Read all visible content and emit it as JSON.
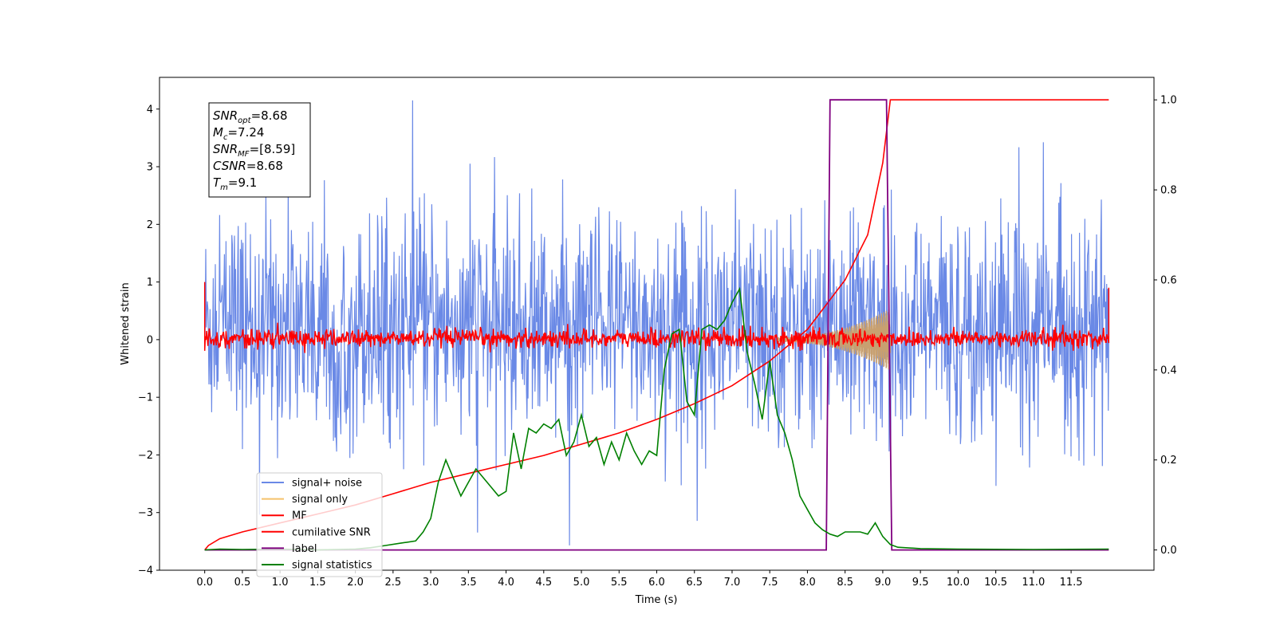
{
  "chart_data": {
    "type": "line",
    "xlabel": "Time (s)",
    "ylabel": "Whitened strain",
    "xlim": [
      -0.6,
      12.6
    ],
    "ylim": [
      -4.0,
      4.55
    ],
    "y2lim": [
      -0.045,
      1.05
    ],
    "x_ticks": [
      0.0,
      0.5,
      1.0,
      1.5,
      2.0,
      2.5,
      3.0,
      3.5,
      4.0,
      4.5,
      5.0,
      5.5,
      6.0,
      6.5,
      7.0,
      7.5,
      8.0,
      8.5,
      9.0,
      9.5,
      10.0,
      10.5,
      11.0,
      11.5
    ],
    "x_tick_labels": [
      "0.0",
      "0.5",
      "1.0",
      "1.5",
      "2.0",
      "2.5",
      "3.0",
      "3.5",
      "4.0",
      "4.5",
      "5.0",
      "5.5",
      "6.0",
      "6.5",
      "7.0",
      "7.5",
      "8.0",
      "8.5",
      "9.0",
      "9.5",
      "10.0",
      "10.5",
      "11.0",
      "11.5"
    ],
    "y_ticks": [
      -4,
      -3,
      -2,
      -1,
      0,
      1,
      2,
      3,
      4
    ],
    "y_tick_labels": [
      "−4",
      "−3",
      "−2",
      "−1",
      "0",
      "1",
      "2",
      "3",
      "4"
    ],
    "y2_ticks": [
      0.0,
      0.2,
      0.4,
      0.6,
      0.8,
      1.0
    ],
    "y2_tick_labels": [
      "0.0",
      "0.2",
      "0.4",
      "0.6",
      "0.8",
      "1.0"
    ],
    "grid": false,
    "legend_position": "lower-left",
    "annotation": [
      {
        "sym": "SNR",
        "sub": "opt",
        "value": "=8.68"
      },
      {
        "sym": "M",
        "sub": "c",
        "value": "=7.24"
      },
      {
        "sym": "SNR",
        "sub": "MF",
        "value": "=[8.59]"
      },
      {
        "sym": "CSNR",
        "sub": "",
        "value": "=8.68"
      },
      {
        "sym": "T",
        "sub": "m",
        "value": "=9.1"
      }
    ],
    "series": [
      {
        "name": "signal+ noise",
        "color": "#6a89e6",
        "axis": "left",
        "kind": "noise",
        "amplitude_range": [
          -3.6,
          4.15
        ],
        "typical_range": [
          -2.0,
          2.5
        ],
        "x_range": [
          0.0,
          12.0
        ]
      },
      {
        "name": "signal only",
        "color": "#f5c26b",
        "axis": "left",
        "kind": "chirp",
        "x_range": [
          7.6,
          9.1
        ],
        "envelope_end": 0.5
      },
      {
        "name": "MF",
        "color": "#ff0000",
        "axis": "left",
        "kind": "noise",
        "typical_range": [
          -0.15,
          0.2
        ],
        "x_range": [
          0.0,
          12.0
        ],
        "edge_value": 1.0
      },
      {
        "name": "cumilative SNR",
        "color": "#ff0000",
        "axis": "right",
        "x": [
          0.0,
          0.05,
          0.2,
          0.5,
          1.0,
          1.5,
          2.0,
          2.5,
          3.0,
          3.5,
          4.0,
          4.5,
          5.0,
          5.5,
          6.0,
          6.5,
          7.0,
          7.5,
          8.0,
          8.5,
          8.8,
          9.0,
          9.1,
          12.0
        ],
        "y": [
          0.0,
          0.01,
          0.025,
          0.04,
          0.06,
          0.08,
          0.1,
          0.125,
          0.15,
          0.17,
          0.19,
          0.21,
          0.235,
          0.26,
          0.29,
          0.325,
          0.365,
          0.42,
          0.49,
          0.6,
          0.7,
          0.86,
          1.0,
          1.0
        ]
      },
      {
        "name": "label",
        "color": "#800080",
        "axis": "right",
        "x": [
          0.0,
          8.25,
          8.3,
          9.05,
          9.12,
          12.0
        ],
        "y": [
          0.0,
          0.0,
          1.0,
          1.0,
          0.0,
          0.0
        ]
      },
      {
        "name": "signal statistics",
        "color": "#008000",
        "axis": "right",
        "x": [
          0.0,
          0.2,
          0.5,
          1.0,
          1.5,
          2.0,
          2.2,
          2.4,
          2.6,
          2.8,
          2.9,
          3.0,
          3.1,
          3.2,
          3.3,
          3.4,
          3.5,
          3.6,
          3.7,
          3.8,
          3.9,
          4.0,
          4.1,
          4.2,
          4.3,
          4.4,
          4.5,
          4.6,
          4.7,
          4.8,
          4.9,
          5.0,
          5.1,
          5.2,
          5.3,
          5.4,
          5.5,
          5.6,
          5.7,
          5.8,
          5.9,
          6.0,
          6.1,
          6.2,
          6.3,
          6.4,
          6.5,
          6.6,
          6.7,
          6.8,
          6.9,
          7.0,
          7.1,
          7.2,
          7.3,
          7.4,
          7.5,
          7.6,
          7.7,
          7.8,
          7.9,
          8.0,
          8.1,
          8.2,
          8.3,
          8.4,
          8.5,
          8.6,
          8.7,
          8.8,
          8.9,
          9.0,
          9.1,
          9.2,
          9.5,
          10.0,
          11.0,
          12.0
        ],
        "y": [
          0.0,
          0.002,
          0.001,
          0.002,
          0.0,
          0.002,
          0.005,
          0.01,
          0.015,
          0.02,
          0.04,
          0.07,
          0.15,
          0.2,
          0.16,
          0.12,
          0.15,
          0.18,
          0.16,
          0.14,
          0.12,
          0.13,
          0.26,
          0.18,
          0.27,
          0.26,
          0.28,
          0.27,
          0.29,
          0.21,
          0.24,
          0.3,
          0.23,
          0.25,
          0.19,
          0.24,
          0.2,
          0.26,
          0.22,
          0.19,
          0.22,
          0.21,
          0.4,
          0.48,
          0.49,
          0.33,
          0.3,
          0.49,
          0.5,
          0.49,
          0.51,
          0.55,
          0.58,
          0.44,
          0.37,
          0.29,
          0.42,
          0.3,
          0.26,
          0.2,
          0.12,
          0.09,
          0.06,
          0.045,
          0.035,
          0.03,
          0.04,
          0.04,
          0.04,
          0.035,
          0.06,
          0.03,
          0.012,
          0.006,
          0.003,
          0.002,
          0.001,
          0.002
        ]
      }
    ]
  }
}
